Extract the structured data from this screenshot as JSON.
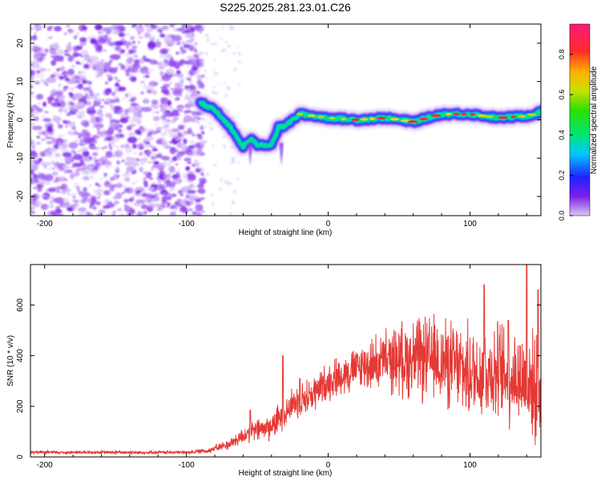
{
  "title": "S225.2025.281.23.01.C26",
  "chart_data": [
    {
      "type": "heatmap",
      "name": "spectrogram",
      "xlabel": "Height of straight line (km)",
      "ylabel": "Frequency (Hz)",
      "xlim": [
        -210,
        150
      ],
      "ylim": [
        -25,
        25
      ],
      "xticks": [
        -200,
        -100,
        0,
        100
      ],
      "xtick_labels": [
        "-200",
        "-100",
        "0",
        "100"
      ],
      "yticks": [
        -20,
        -10,
        0,
        10,
        20
      ],
      "ytick_labels": [
        "-20",
        "-10",
        "0",
        "10",
        "20"
      ],
      "noise_region_x": [
        -210,
        -88
      ],
      "ridge": {
        "description_points_x": [
          -90,
          -80,
          -70,
          -60,
          -55,
          -50,
          -45,
          -40,
          -35,
          -30,
          -20,
          -10,
          0,
          20,
          40,
          60,
          80,
          100,
          120,
          140,
          150
        ],
        "description_points_y": [
          4.5,
          2.5,
          -1.5,
          -7,
          -5,
          -6.5,
          -6.5,
          -6.5,
          -2,
          -1.5,
          1.5,
          1,
          0.5,
          0,
          0.5,
          -0.5,
          1.5,
          1.5,
          0.5,
          1,
          2
        ]
      },
      "colorbar": {
        "label": "Normalized spectral amplitude",
        "range": [
          0,
          0.95
        ],
        "ticks": [
          0,
          0.2,
          0.4,
          0.6,
          0.8
        ],
        "tick_labels": [
          "0.0",
          "0.2",
          "0.4",
          "0.6",
          "0.8"
        ]
      }
    },
    {
      "type": "line",
      "name": "snr",
      "xlabel": "Height of straight line (km)",
      "ylabel": "SNR (10 * v/v)",
      "xlim": [
        -210,
        150
      ],
      "ylim": [
        0,
        760
      ],
      "xticks": [
        -200,
        -100,
        0,
        100
      ],
      "xtick_labels": [
        "-200",
        "-100",
        "0",
        "100"
      ],
      "yticks": [
        0,
        200,
        400,
        600
      ],
      "ytick_labels": [
        "0",
        "200",
        "400",
        "600"
      ],
      "color": "#e53935",
      "trend_x": [
        -210,
        -100,
        -85,
        -70,
        -55,
        -40,
        -25,
        -10,
        0,
        20,
        40,
        60,
        80,
        100,
        120,
        140,
        150
      ],
      "trend_y": [
        18,
        18,
        25,
        50,
        100,
        120,
        210,
        250,
        300,
        350,
        380,
        390,
        380,
        330,
        340,
        300,
        250
      ],
      "spread_y": [
        6,
        6,
        10,
        20,
        40,
        50,
        60,
        70,
        70,
        80,
        110,
        150,
        160,
        170,
        180,
        190,
        190
      ],
      "peaks": [
        [
          -32,
          400
        ],
        [
          -55,
          185
        ],
        [
          -20,
          310
        ],
        [
          110,
          680
        ],
        [
          127,
          540
        ],
        [
          140,
          760
        ],
        [
          148,
          660
        ]
      ]
    }
  ]
}
